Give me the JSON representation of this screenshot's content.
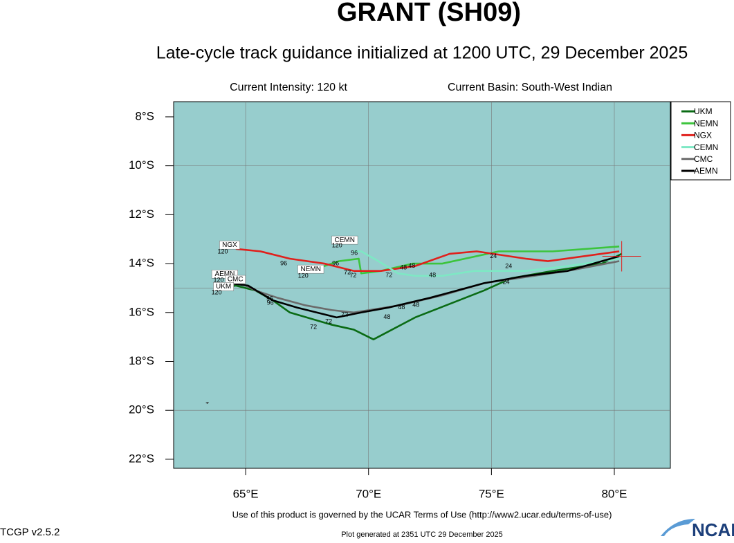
{
  "chart_data": {
    "type": "track",
    "title": "GRANT (SH09)",
    "subtitle": "Late-cycle track guidance initialized at 1200 UTC, 29 December 2025",
    "intensity": "Current Intensity: 120 kt",
    "basin": "Current Basin: South-West Indian",
    "terms": "Use of this product is governed by the UCAR Terms of Use (http://www2.ucar.edu/terms-of-use)",
    "version": "TCGP v2.5.2",
    "generated": "Plot generated at 2351 UTC   29 December 2025",
    "logo": "NCAR",
    "xlim": [
      62.07,
      82.28
    ],
    "ylim": [
      -22.37,
      -7.38
    ],
    "xticks": [
      {
        "value": 65,
        "label": "65°E"
      },
      {
        "value": 70,
        "label": "70°E"
      },
      {
        "value": 75,
        "label": "75°E"
      },
      {
        "value": 80,
        "label": "80°E"
      }
    ],
    "yticks": [
      {
        "value": -8,
        "label": "8°S"
      },
      {
        "value": -10,
        "label": "10°S"
      },
      {
        "value": -12,
        "label": "12°S"
      },
      {
        "value": -14,
        "label": "14°S"
      },
      {
        "value": -16,
        "label": "16°S"
      },
      {
        "value": -18,
        "label": "18°S"
      },
      {
        "value": -20,
        "label": "20°S"
      },
      {
        "value": -22,
        "label": "22°S"
      }
    ],
    "ygrid": [
      -10,
      -15,
      -20
    ],
    "legend": "upper right",
    "current_position": {
      "x": 80.3,
      "y": -13.7,
      "color": "#e0201c"
    },
    "series": [
      {
        "name": "UKM",
        "color": "#0a6b14",
        "x": [
          80.3,
          79.5,
          77.5,
          75.8,
          74.7,
          71.9,
          70.2,
          69.4,
          68.5,
          66.8,
          66.1,
          65.4,
          64.6,
          64.0
        ],
        "y": [
          -13.6,
          -14.0,
          -14.3,
          -14.6,
          -15.1,
          -16.2,
          -17.1,
          -16.7,
          -16.5,
          -16.0,
          -15.5,
          -15.1,
          -14.9,
          -15.0
        ]
      },
      {
        "name": "NEMN",
        "color": "#3cc43c",
        "x": [
          80.2,
          77.5,
          75.3,
          73.0,
          71.8,
          70.5,
          69.7,
          69.6,
          68.8,
          68.2,
          68.0
        ],
        "y": [
          -13.3,
          -13.5,
          -13.5,
          -14.0,
          -14.0,
          -14.3,
          -14.4,
          -13.8,
          -13.9,
          -14.1,
          -14.2
        ]
      },
      {
        "name": "NGX",
        "color": "#e0201c",
        "x": [
          80.2,
          77.3,
          76.4,
          74.4,
          73.3,
          71.9,
          70.5,
          69.4,
          68.2,
          66.8,
          65.6,
          64.6
        ],
        "y": [
          -13.5,
          -13.9,
          -13.8,
          -13.5,
          -13.6,
          -14.1,
          -14.3,
          -14.3,
          -14.0,
          -13.8,
          -13.5,
          -13.4
        ]
      },
      {
        "name": "CEMN",
        "color": "#7ee8c4",
        "x": [
          80.2,
          78.1,
          76.4,
          74.3,
          73.0,
          71.9,
          71.2,
          70.4,
          69.7,
          69.4
        ],
        "y": [
          -13.8,
          -14.1,
          -14.3,
          -14.3,
          -14.5,
          -14.5,
          -14.4,
          -13.9,
          -13.5,
          -13.5
        ]
      },
      {
        "name": "CMC",
        "color": "#6b6b6b",
        "x": [
          80.2,
          78.1,
          74.7,
          73.0,
          71.3,
          69.4,
          68.5,
          67.4,
          66.3,
          65.4,
          64.6,
          64.2
        ],
        "y": [
          -13.9,
          -14.3,
          -14.8,
          -15.3,
          -15.7,
          -16.0,
          -15.9,
          -15.7,
          -15.4,
          -15.1,
          -14.7,
          -14.7
        ]
      },
      {
        "name": "AEMN",
        "color": "#000000",
        "x": [
          80.2,
          78.1,
          76.4,
          74.7,
          72.5,
          70.8,
          69.7,
          68.7,
          67.1,
          66.1,
          65.1,
          64.3
        ],
        "y": [
          -13.7,
          -14.3,
          -14.5,
          -14.8,
          -15.4,
          -15.8,
          -16.0,
          -16.2,
          -15.8,
          -15.5,
          -14.9,
          -14.8
        ]
      }
    ],
    "annotations": [
      {
        "text": "NGX",
        "x": 64.35,
        "y": -13.24,
        "boxed": true
      },
      {
        "text": "120",
        "x": 64.07,
        "y": -13.52
      },
      {
        "text": "NEMN",
        "x": 67.65,
        "y": -14.23,
        "boxed": true
      },
      {
        "text": "120",
        "x": 67.34,
        "y": -14.51
      },
      {
        "text": "CEMN",
        "x": 69.03,
        "y": -13.04,
        "boxed": true
      },
      {
        "text": "120",
        "x": 68.72,
        "y": -13.27
      },
      {
        "text": "AEMN",
        "x": 64.15,
        "y": -14.43,
        "boxed": true
      },
      {
        "text": "120",
        "x": 63.9,
        "y": -14.68
      },
      {
        "text": "CMC",
        "x": 64.58,
        "y": -14.65,
        "boxed": true
      },
      {
        "text": "120",
        "x": 64.3,
        "y": -14.88
      },
      {
        "text": "UKM",
        "x": 64.1,
        "y": -14.94,
        "boxed": true
      },
      {
        "text": "120",
        "x": 63.82,
        "y": -15.19
      },
      {
        "text": "96",
        "x": 66.55,
        "y": -14.0
      },
      {
        "text": "96",
        "x": 68.66,
        "y": -14.0
      },
      {
        "text": "96",
        "x": 69.42,
        "y": -13.58
      },
      {
        "text": "96",
        "x": 65.98,
        "y": -15.45
      },
      {
        "text": "96",
        "x": 66.0,
        "y": -15.62
      },
      {
        "text": "72",
        "x": 67.76,
        "y": -16.6
      },
      {
        "text": "72",
        "x": 68.38,
        "y": -16.38
      },
      {
        "text": "72",
        "x": 69.03,
        "y": -16.1
      },
      {
        "text": "72",
        "x": 69.14,
        "y": -14.37
      },
      {
        "text": "72",
        "x": 69.37,
        "y": -14.5
      },
      {
        "text": "72",
        "x": 70.83,
        "y": -14.48
      },
      {
        "text": "48",
        "x": 70.75,
        "y": -16.2
      },
      {
        "text": "48",
        "x": 71.34,
        "y": -15.8
      },
      {
        "text": "48",
        "x": 71.93,
        "y": -15.7
      },
      {
        "text": "48",
        "x": 71.42,
        "y": -14.17
      },
      {
        "text": "48",
        "x": 71.76,
        "y": -14.1
      },
      {
        "text": "48",
        "x": 72.6,
        "y": -14.48
      },
      {
        "text": "24",
        "x": 75.08,
        "y": -13.7
      },
      {
        "text": "24",
        "x": 75.7,
        "y": -14.12
      },
      {
        "text": "24",
        "x": 75.6,
        "y": -14.77
      }
    ]
  }
}
